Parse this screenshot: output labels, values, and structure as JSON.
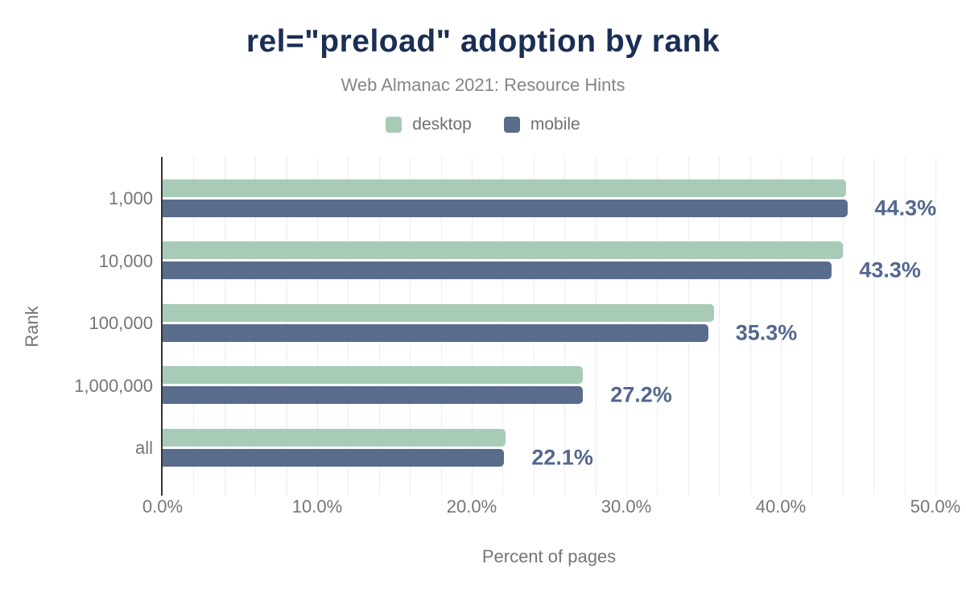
{
  "chart_data": {
    "type": "bar",
    "orientation": "horizontal",
    "title": "rel=\"preload\" adoption by rank",
    "subtitle": "Web Almanac 2021: Resource Hints",
    "xlabel": "Percent of pages",
    "ylabel": "Rank",
    "categories": [
      "1,000",
      "10,000",
      "100,000",
      "1,000,000",
      "all"
    ],
    "series": [
      {
        "name": "desktop",
        "color": "#a8cbb8",
        "values": [
          44.2,
          44.0,
          35.7,
          27.2,
          22.2
        ]
      },
      {
        "name": "mobile",
        "color": "#5a6c8c",
        "values": [
          44.3,
          43.3,
          35.3,
          27.2,
          22.1
        ]
      }
    ],
    "value_labels": {
      "series": "mobile",
      "labels": [
        "44.3%",
        "43.3%",
        "35.3%",
        "27.2%",
        "22.1%"
      ],
      "color": "#52678e"
    },
    "xlim": [
      0,
      50
    ],
    "x_ticks": [
      {
        "value": 0,
        "label": "0.0%"
      },
      {
        "value": 10,
        "label": "10.0%"
      },
      {
        "value": 20,
        "label": "20.0%"
      },
      {
        "value": 30,
        "label": "30.0%"
      },
      {
        "value": 40,
        "label": "40.0%"
      },
      {
        "value": 50,
        "label": "50.0%"
      }
    ],
    "grid": {
      "step": 2,
      "color": "#ededed",
      "on": true
    },
    "legend": {
      "position": "top",
      "entries": [
        {
          "label": "desktop",
          "color": "#a8cbb8"
        },
        {
          "label": "mobile",
          "color": "#5a6c8c"
        }
      ]
    }
  },
  "colors": {
    "title": "#1b2e54",
    "subtitle": "#858585",
    "legend_text": "#6f6f6f",
    "axis_text": "#757575",
    "axis_line": "#333333",
    "grid": "#ededed",
    "value_label": "#52678e",
    "background": "#ffffff"
  }
}
